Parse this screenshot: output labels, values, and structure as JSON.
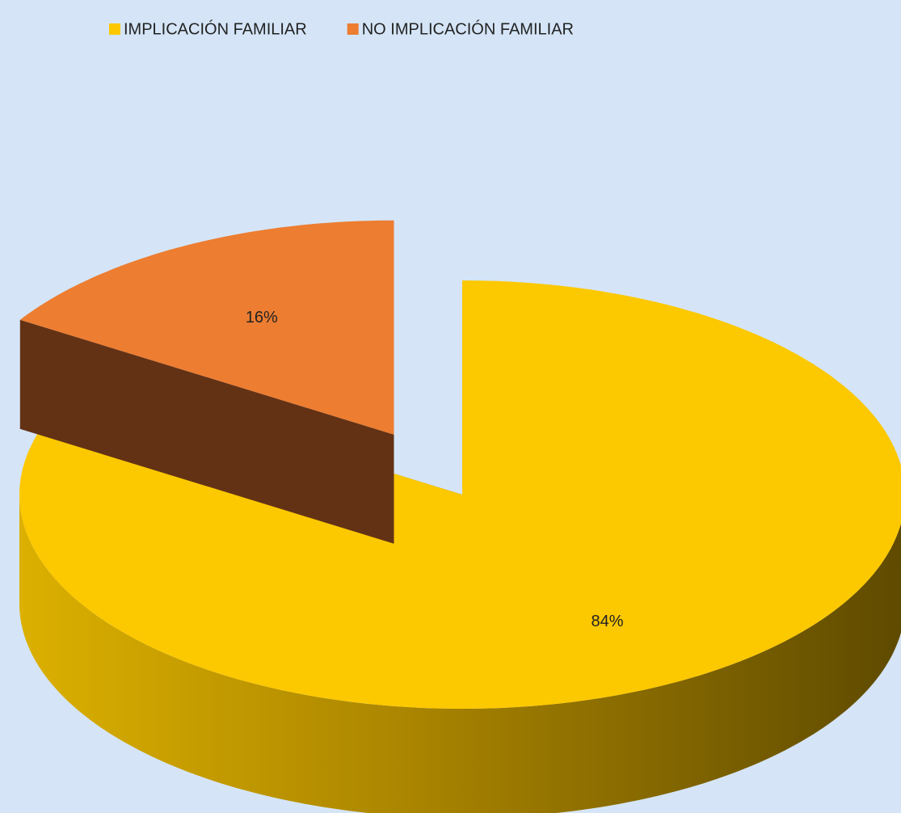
{
  "chart_data": {
    "type": "pie3d",
    "categories": [
      "IMPLICACIÓN FAMILIAR",
      "NO IMPLICACIÓN FAMILIAR"
    ],
    "values": [
      84,
      16
    ],
    "value_labels": [
      "84%",
      "16%"
    ],
    "colors": [
      "#fcc800",
      "#ed7d31"
    ],
    "legend": "top"
  }
}
